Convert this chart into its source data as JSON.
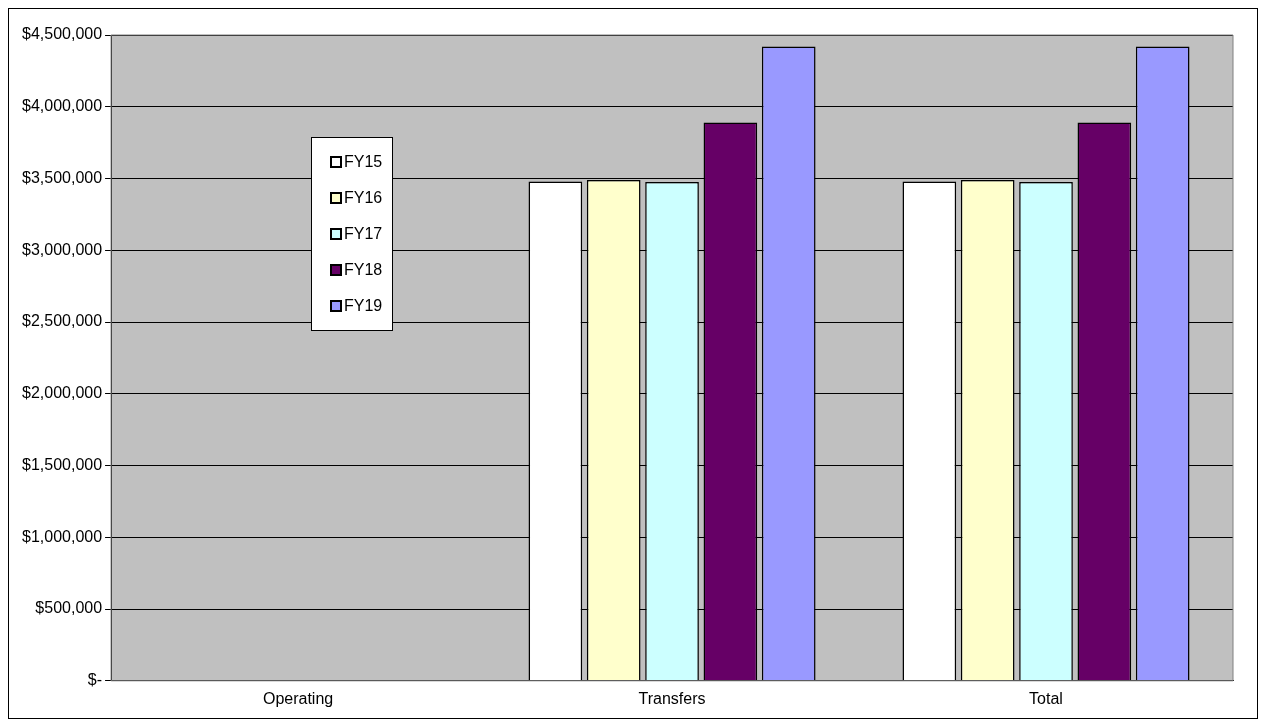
{
  "chart_data": {
    "type": "bar",
    "categories": [
      "Operating",
      "Transfers",
      "Total"
    ],
    "series": [
      {
        "name": "FY15",
        "color": "#ffffff",
        "values": [
          0,
          3480000,
          3480000
        ]
      },
      {
        "name": "FY16",
        "color": "#ffffcc",
        "values": [
          0,
          3490000,
          3490000
        ]
      },
      {
        "name": "FY17",
        "color": "#ccffff",
        "values": [
          0,
          3475000,
          3475000
        ]
      },
      {
        "name": "FY18",
        "color": "#660066",
        "values": [
          0,
          3890000,
          3890000
        ]
      },
      {
        "name": "FY19",
        "color": "#9999ff",
        "values": [
          0,
          4420000,
          4420000
        ]
      }
    ],
    "ylim": [
      0,
      4500000
    ],
    "yticks": [
      {
        "value": 0,
        "label": "$-"
      },
      {
        "value": 500000,
        "label": "$500,000"
      },
      {
        "value": 1000000,
        "label": "$1,000,000"
      },
      {
        "value": 1500000,
        "label": "$1,500,000"
      },
      {
        "value": 2000000,
        "label": "$2,000,000"
      },
      {
        "value": 2500000,
        "label": "$2,500,000"
      },
      {
        "value": 3000000,
        "label": "$3,000,000"
      },
      {
        "value": 3500000,
        "label": "$3,500,000"
      },
      {
        "value": 4000000,
        "label": "$4,000,000"
      },
      {
        "value": 4500000,
        "label": "$4,500,000"
      }
    ],
    "grid": "y",
    "legend": "top left"
  }
}
